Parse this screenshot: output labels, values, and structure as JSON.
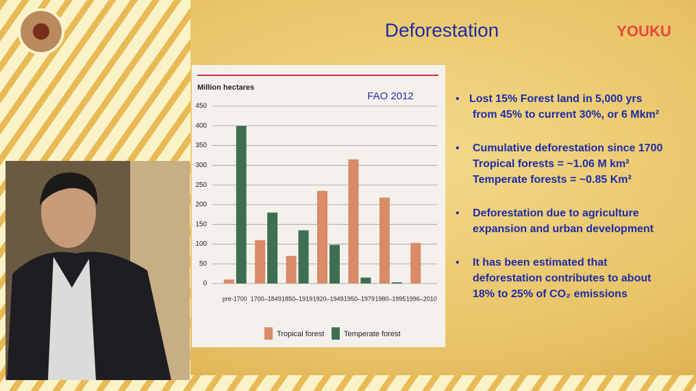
{
  "slide": {
    "title": "Deforestation",
    "watermark": "YOUKU",
    "bullets": [
      [
        "Lost 15% Forest land in 5,000 yrs",
        "from 45% to current 30%, or  6 Mkm²"
      ],
      [
        "Cumulative deforestation since 1700",
        "Tropical forests = ~1.06 M km²",
        "Temperate forests = ~0.85 Km²"
      ],
      [
        "Deforestation due to agriculture",
        "expansion and urban development"
      ],
      [
        "It has been estimated that",
        "deforestation contributes to about",
        "18% to 25% of CO₂ emissions"
      ]
    ]
  },
  "chart_data": {
    "type": "bar",
    "y_label": "Million hectares",
    "annotation": "FAO 2012",
    "categories": [
      "pre-1700",
      "1700–1849",
      "1850–1919",
      "1920–1949",
      "1950–1979",
      "1980–1995",
      "1996–2010"
    ],
    "series": [
      {
        "name": "Tropical forest",
        "color": "#d98a66",
        "values": [
          10,
          110,
          70,
          235,
          315,
          218,
          103
        ]
      },
      {
        "name": "Temperate forest",
        "color": "#3f6e52",
        "values": [
          400,
          180,
          135,
          98,
          15,
          3,
          0
        ]
      }
    ],
    "ylim": [
      0,
      450
    ],
    "yticks": [
      0,
      50,
      100,
      150,
      200,
      250,
      300,
      350,
      400,
      450
    ],
    "grid": true
  }
}
